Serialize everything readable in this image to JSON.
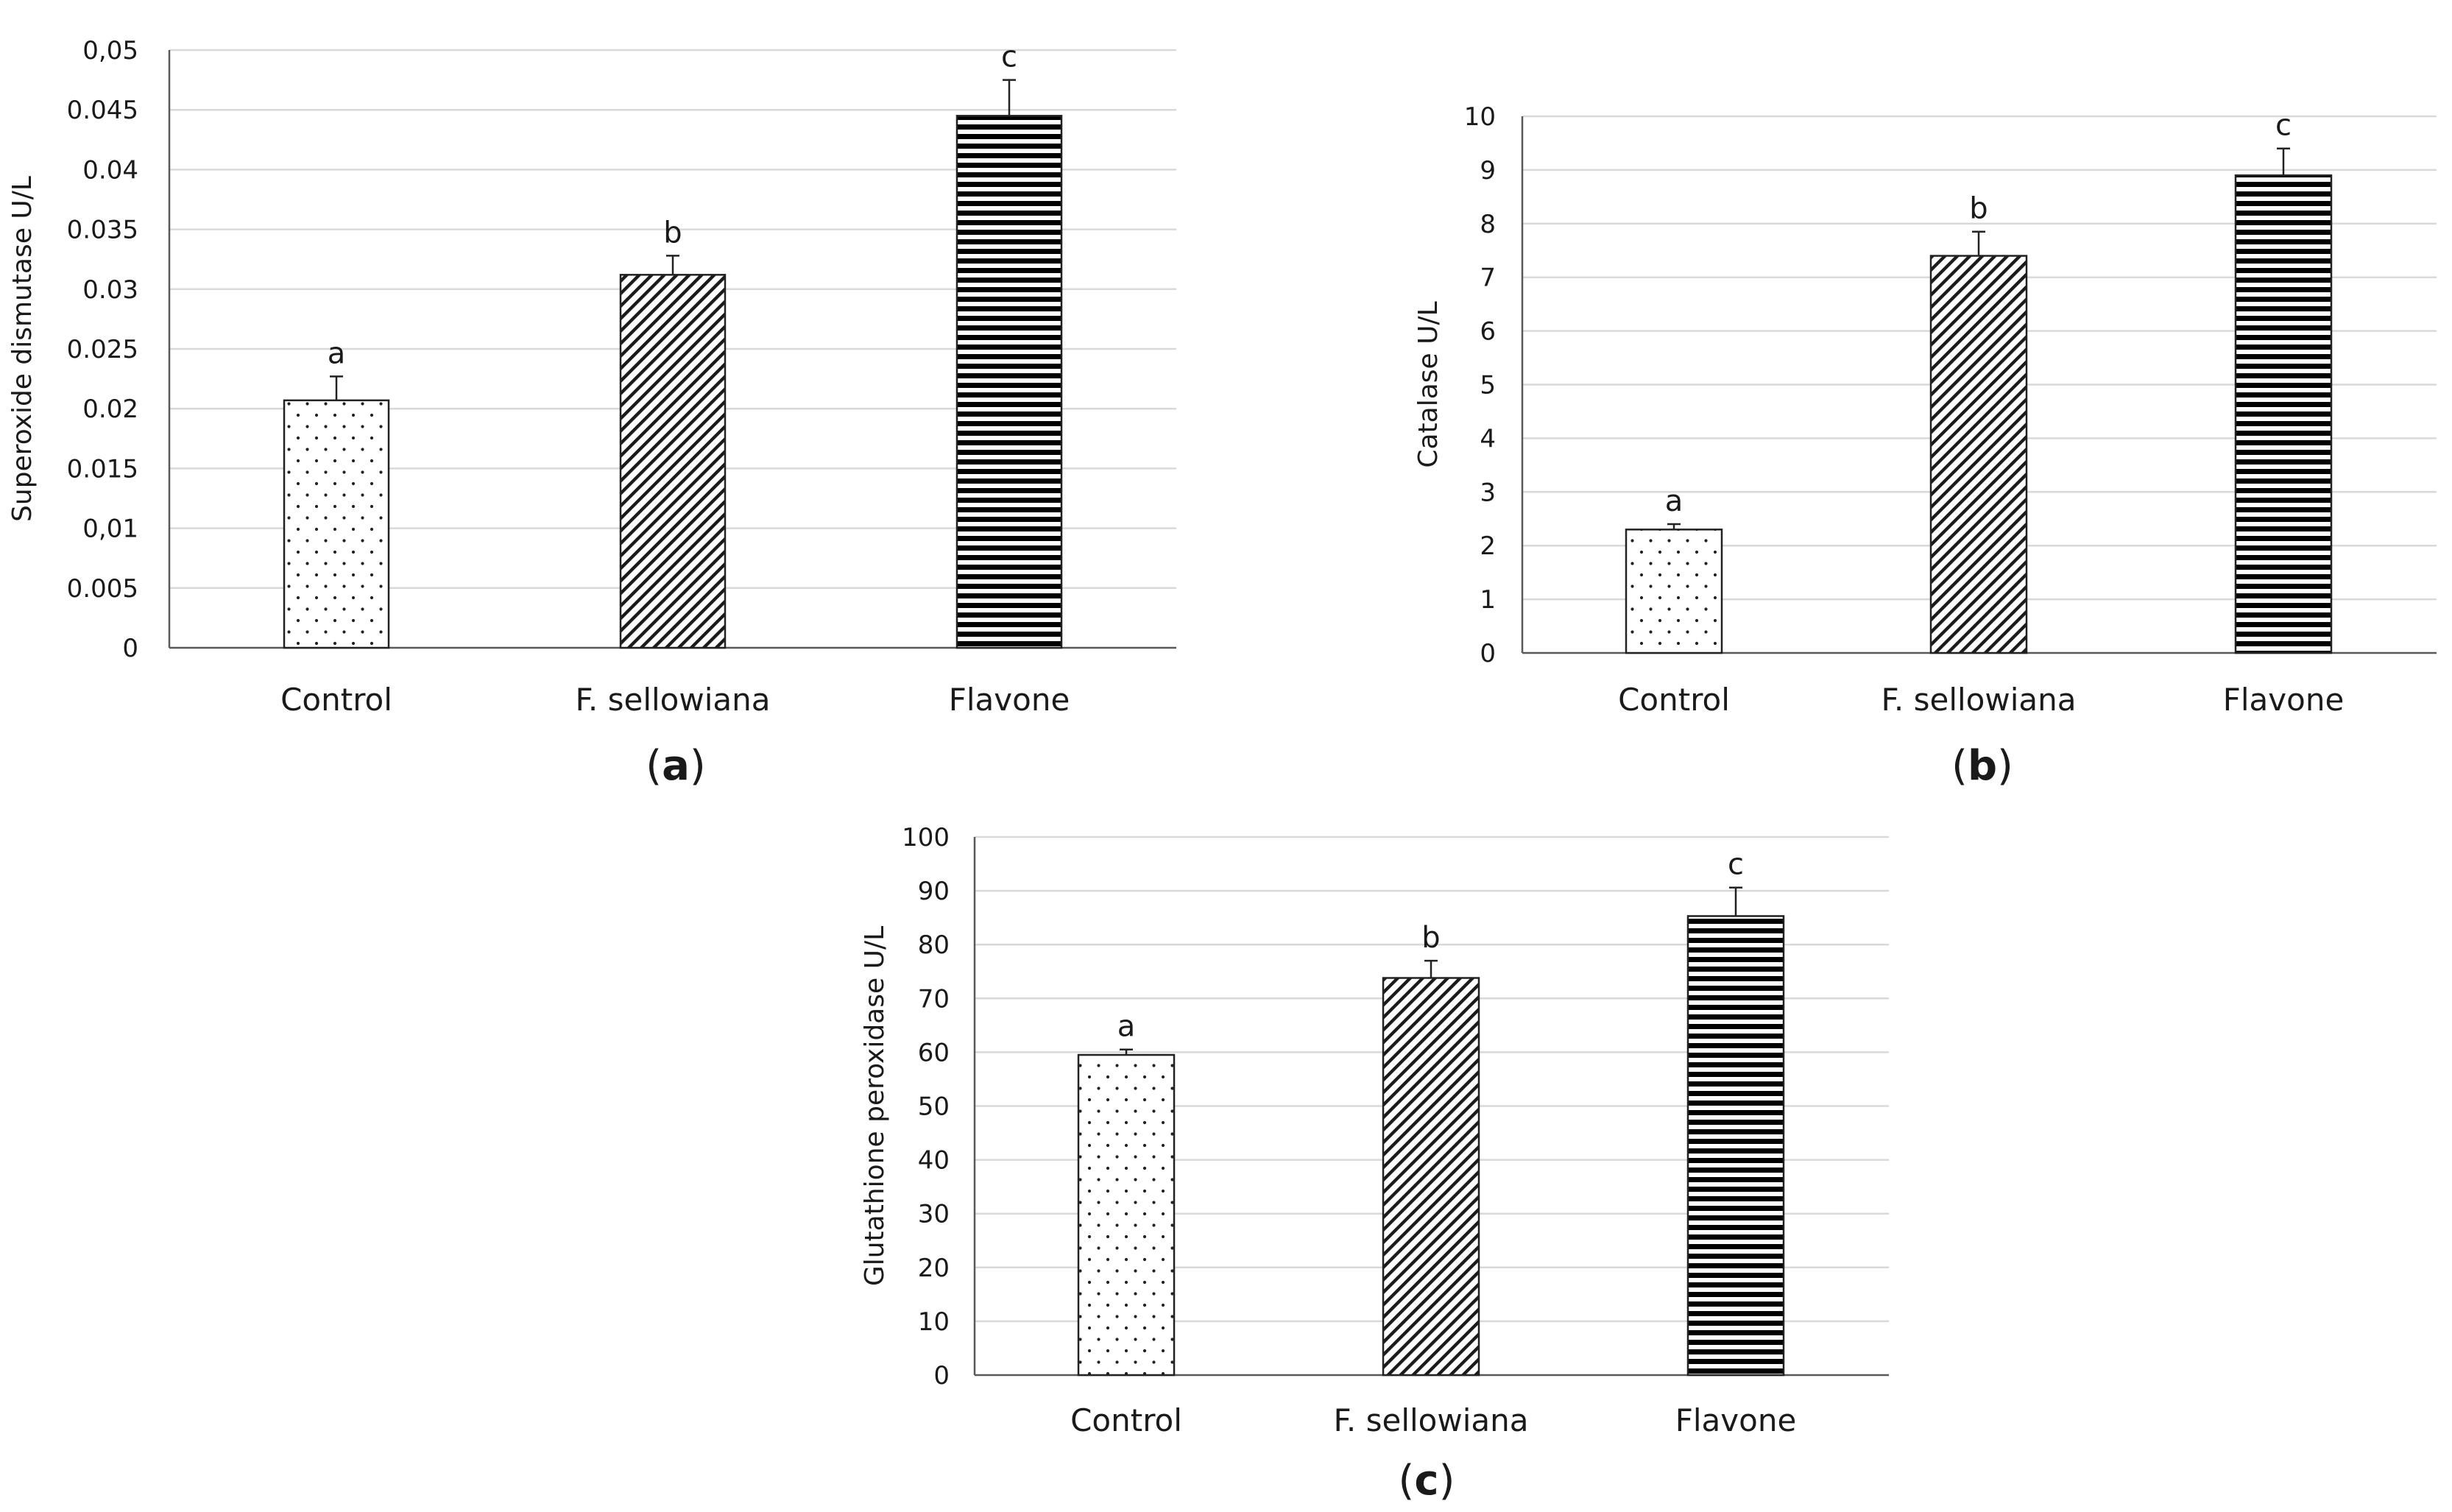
{
  "figure": {
    "panel_labels": [
      "a",
      "b",
      "c"
    ]
  },
  "chart_data": [
    {
      "panel": "a",
      "type": "bar",
      "title": "",
      "xlabel": "",
      "ylabel": "Superoxide dismutase  U/L",
      "categories": [
        "Control",
        "F. sellowiana",
        "Flavone"
      ],
      "values": [
        0.0207,
        0.0312,
        0.0445
      ],
      "errors": [
        0.002,
        0.0016,
        0.003
      ],
      "significance": [
        "a",
        "b",
        "c"
      ],
      "patterns": [
        "dots",
        "diagonal",
        "horizontal"
      ],
      "ylim": [
        0,
        0.05
      ],
      "yticks": [
        0,
        0.005,
        0.01,
        0.015,
        0.02,
        0.025,
        0.03,
        0.035,
        0.04,
        0.045,
        0.05
      ],
      "yticklabels": [
        "0",
        "0.005",
        "0,01",
        "0.015",
        "0.02",
        "0.025",
        "0.03",
        "0.035",
        "0.04",
        "0.045",
        "0,05"
      ],
      "grid": true
    },
    {
      "panel": "b",
      "type": "bar",
      "title": "",
      "xlabel": "",
      "ylabel": "Catalase  U/L",
      "categories": [
        "Control",
        "F. sellowiana",
        "Flavone"
      ],
      "values": [
        2.3,
        7.4,
        8.9
      ],
      "errors": [
        0.1,
        0.45,
        0.5
      ],
      "significance": [
        "a",
        "b",
        "c"
      ],
      "patterns": [
        "dots",
        "diagonal",
        "horizontal"
      ],
      "ylim": [
        0,
        10
      ],
      "yticks": [
        0,
        1,
        2,
        3,
        4,
        5,
        6,
        7,
        8,
        9,
        10
      ],
      "yticklabels": [
        "0",
        "1",
        "2",
        "3",
        "4",
        "5",
        "6",
        "7",
        "8",
        "9",
        "10"
      ],
      "grid": true
    },
    {
      "panel": "c",
      "type": "bar",
      "title": "",
      "xlabel": "",
      "ylabel": "Glutathione peroxidase U/L",
      "categories": [
        "Control",
        "F. sellowiana",
        "Flavone"
      ],
      "values": [
        59.5,
        73.8,
        85.3
      ],
      "errors": [
        1.0,
        3.2,
        5.3
      ],
      "significance": [
        "a",
        "b",
        "c"
      ],
      "patterns": [
        "dots",
        "diagonal",
        "horizontal"
      ],
      "ylim": [
        0,
        100
      ],
      "yticks": [
        0,
        10,
        20,
        30,
        40,
        50,
        60,
        70,
        80,
        90,
        100
      ],
      "yticklabels": [
        "0",
        "10",
        "20",
        "30",
        "40",
        "50",
        "60",
        "70",
        "80",
        "90",
        "100"
      ],
      "grid": true
    }
  ]
}
